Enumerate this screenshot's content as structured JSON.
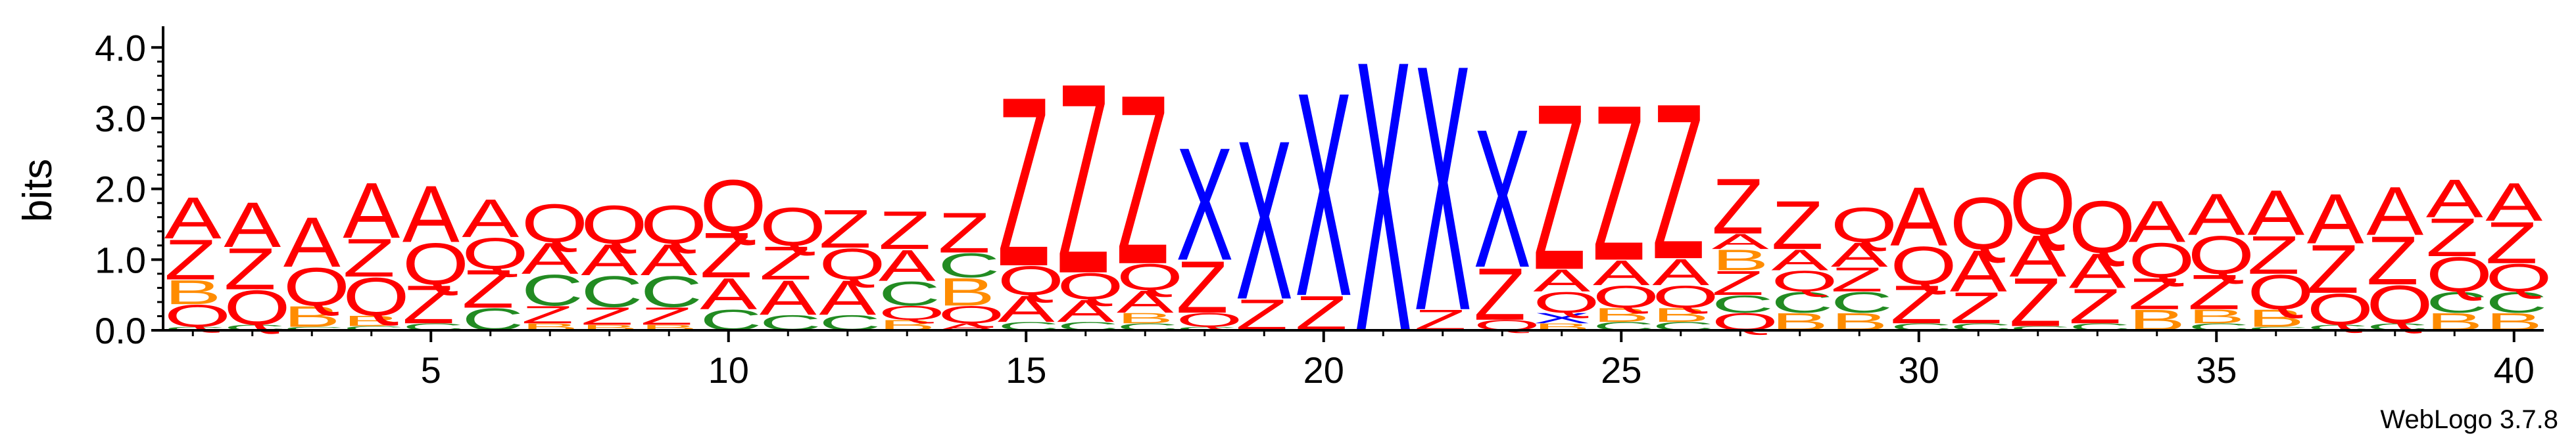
{
  "chart_data": {
    "type": "sequence-logo",
    "ylabel": "bits",
    "ylim": [
      0,
      4.3
    ],
    "yticks": [
      {
        "value": 0.0,
        "label": "0.0"
      },
      {
        "value": 1.0,
        "label": "1.0"
      },
      {
        "value": 2.0,
        "label": "2.0"
      },
      {
        "value": 3.0,
        "label": "3.0"
      },
      {
        "value": 4.0,
        "label": "4.0"
      }
    ],
    "positions": [
      1,
      40
    ],
    "xticks": [
      {
        "value": 5,
        "label": "5"
      },
      {
        "value": 10,
        "label": "10"
      },
      {
        "value": 15,
        "label": "15"
      },
      {
        "value": 20,
        "label": "20"
      },
      {
        "value": 25,
        "label": "25"
      },
      {
        "value": 30,
        "label": "30"
      },
      {
        "value": 35,
        "label": "35"
      },
      {
        "value": 40,
        "label": "40"
      }
    ],
    "colors": {
      "A": "#ff0000",
      "Z": "#ff0000",
      "Q": "#ff0000",
      "X": "#0000ff",
      "C": "#228b22",
      "B": "#ff8c00"
    },
    "stacks": [
      [
        [
          "C",
          0.05
        ],
        [
          "Q",
          0.32
        ],
        [
          "B",
          0.35
        ],
        [
          "Z",
          0.58
        ],
        [
          "A",
          0.6
        ]
      ],
      [
        [
          "C",
          0.08
        ],
        [
          "Q",
          0.5
        ],
        [
          "Z",
          0.6
        ],
        [
          "A",
          0.65
        ]
      ],
      [
        [
          "C",
          0.05
        ],
        [
          "B",
          0.3
        ],
        [
          "Q",
          0.55
        ],
        [
          "A",
          0.72
        ]
      ],
      [
        [
          "C",
          0.06
        ],
        [
          "B",
          0.15
        ],
        [
          "Q",
          0.55
        ],
        [
          "Z",
          0.55
        ],
        [
          "A",
          0.8
        ]
      ],
      [
        [
          "C",
          0.1
        ],
        [
          "Z",
          0.55
        ],
        [
          "Q",
          0.6
        ],
        [
          "A",
          0.82
        ]
      ],
      [
        [
          "C",
          0.32
        ],
        [
          "Z",
          0.55
        ],
        [
          "Q",
          0.45
        ],
        [
          "A",
          0.55
        ]
      ],
      [
        [
          "B",
          0.1
        ],
        [
          "Z",
          0.25
        ],
        [
          "C",
          0.45
        ],
        [
          "A",
          0.45
        ],
        [
          "Q",
          0.55
        ]
      ],
      [
        [
          "B",
          0.08
        ],
        [
          "Z",
          0.25
        ],
        [
          "C",
          0.45
        ],
        [
          "A",
          0.45
        ],
        [
          "Q",
          0.55
        ]
      ],
      [
        [
          "B",
          0.08
        ],
        [
          "Z",
          0.25
        ],
        [
          "C",
          0.45
        ],
        [
          "A",
          0.45
        ],
        [
          "Q",
          0.55
        ]
      ],
      [
        [
          "C",
          0.3
        ],
        [
          "A",
          0.45
        ],
        [
          "Z",
          0.65
        ],
        [
          "Q",
          0.75
        ]
      ],
      [
        [
          "C",
          0.22
        ],
        [
          "A",
          0.5
        ],
        [
          "Z",
          0.48
        ],
        [
          "Q",
          0.55
        ]
      ],
      [
        [
          "C",
          0.22
        ],
        [
          "A",
          0.5
        ],
        [
          "Q",
          0.45
        ],
        [
          "Z",
          0.55
        ]
      ],
      [
        [
          "B",
          0.15
        ],
        [
          "Q",
          0.2
        ],
        [
          "C",
          0.35
        ],
        [
          "A",
          0.45
        ],
        [
          "Z",
          0.55
        ]
      ],
      [
        [
          "A",
          0.1
        ],
        [
          "Q",
          0.25
        ],
        [
          "B",
          0.4
        ],
        [
          "C",
          0.35
        ],
        [
          "Z",
          0.58
        ]
      ],
      [
        [
          "C",
          0.12
        ],
        [
          "A",
          0.38
        ],
        [
          "Q",
          0.42
        ],
        [
          "Z",
          2.45
        ]
      ],
      [
        [
          "C",
          0.12
        ],
        [
          "A",
          0.32
        ],
        [
          "Q",
          0.38
        ],
        [
          "Z",
          2.75
        ]
      ],
      [
        [
          "C",
          0.1
        ],
        [
          "B",
          0.15
        ],
        [
          "A",
          0.32
        ],
        [
          "Q",
          0.38
        ],
        [
          "Z",
          2.45
        ]
      ],
      [
        [
          "C",
          0.05
        ],
        [
          "Q",
          0.2
        ],
        [
          "Z",
          0.75
        ],
        [
          "X",
          1.63
        ]
      ],
      [
        [
          "Z",
          0.45
        ],
        [
          "X",
          2.3
        ]
      ],
      [
        [
          "Z",
          0.5
        ],
        [
          "X",
          2.95
        ]
      ],
      [
        [
          "X",
          3.92
        ]
      ],
      [
        [
          "Z",
          0.3
        ],
        [
          "X",
          3.55
        ]
      ],
      [
        [
          "Q",
          0.15
        ],
        [
          "Z",
          0.75
        ],
        [
          "X",
          2.0
        ]
      ],
      [
        [
          "B",
          0.1
        ],
        [
          "X",
          0.15
        ],
        [
          "Q",
          0.3
        ],
        [
          "A",
          0.32
        ],
        [
          "Z",
          2.4
        ]
      ],
      [
        [
          "C",
          0.12
        ],
        [
          "B",
          0.2
        ],
        [
          "Q",
          0.32
        ],
        [
          "A",
          0.36
        ],
        [
          "Z",
          2.25
        ]
      ],
      [
        [
          "C",
          0.12
        ],
        [
          "B",
          0.2
        ],
        [
          "Q",
          0.32
        ],
        [
          "A",
          0.38
        ],
        [
          "Z",
          2.25
        ]
      ],
      [
        [
          "Q",
          0.25
        ],
        [
          "C",
          0.25
        ],
        [
          "Z",
          0.35
        ],
        [
          "B",
          0.3
        ],
        [
          "A",
          0.22
        ],
        [
          "Z",
          0.8
        ]
      ],
      [
        [
          "B",
          0.25
        ],
        [
          "C",
          0.3
        ],
        [
          "Q",
          0.3
        ],
        [
          "A",
          0.3
        ],
        [
          "Z",
          0.7
        ]
      ],
      [
        [
          "B",
          0.25
        ],
        [
          "C",
          0.3
        ],
        [
          "Z",
          0.35
        ],
        [
          "A",
          0.35
        ],
        [
          "Q",
          0.5
        ]
      ],
      [
        [
          "C",
          0.1
        ],
        [
          "Z",
          0.55
        ],
        [
          "Q",
          0.55
        ],
        [
          "A",
          0.85
        ]
      ],
      [
        [
          "C",
          0.1
        ],
        [
          "Z",
          0.45
        ],
        [
          "A",
          0.6
        ],
        [
          "Q",
          0.75
        ]
      ],
      [
        [
          "C",
          0.06
        ],
        [
          "Z",
          0.7
        ],
        [
          "A",
          0.6
        ],
        [
          "Q",
          0.9
        ]
      ],
      [
        [
          "C",
          0.1
        ],
        [
          "Z",
          0.5
        ],
        [
          "A",
          0.5
        ],
        [
          "Q",
          0.75
        ]
      ],
      [
        [
          "B",
          0.3
        ],
        [
          "Z",
          0.45
        ],
        [
          "Q",
          0.5
        ],
        [
          "A",
          0.6
        ]
      ],
      [
        [
          "C",
          0.1
        ],
        [
          "B",
          0.2
        ],
        [
          "Z",
          0.5
        ],
        [
          "Q",
          0.55
        ],
        [
          "A",
          0.6
        ]
      ],
      [
        [
          "C",
          0.05
        ],
        [
          "B",
          0.25
        ],
        [
          "Q",
          0.5
        ],
        [
          "Z",
          0.55
        ],
        [
          "A",
          0.65
        ]
      ],
      [
        [
          "C",
          0.08
        ],
        [
          "Q",
          0.45
        ],
        [
          "Z",
          0.7
        ],
        [
          "A",
          0.72
        ]
      ],
      [
        [
          "C",
          0.1
        ],
        [
          "Q",
          0.55
        ],
        [
          "Z",
          0.7
        ],
        [
          "A",
          0.7
        ]
      ],
      [
        [
          "B",
          0.25
        ],
        [
          "C",
          0.3
        ],
        [
          "Q",
          0.5
        ],
        [
          "Z",
          0.55
        ],
        [
          "A",
          0.55
        ]
      ],
      [
        [
          "B",
          0.25
        ],
        [
          "C",
          0.3
        ],
        [
          "Q",
          0.4
        ],
        [
          "Z",
          0.6
        ],
        [
          "A",
          0.55
        ]
      ]
    ]
  },
  "credit": "WebLogo 3.7.8"
}
